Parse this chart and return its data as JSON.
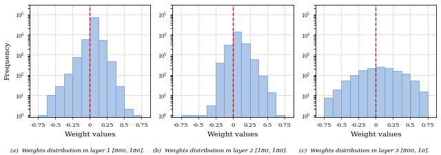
{
  "subplots": [
    {
      "caption": "(a)  Weights distribution in layer 1 [800, 180].",
      "bin_edges": [
        -0.75,
        -0.625,
        -0.5,
        -0.375,
        -0.25,
        -0.125,
        0.0,
        0.125,
        0.25,
        0.375,
        0.5,
        0.625,
        0.75
      ],
      "bin_heights": [
        1,
        10,
        28,
        110,
        750,
        6000,
        75000,
        5500,
        480,
        28,
        2,
        1
      ],
      "xlim": [
        -0.875,
        0.875
      ],
      "xticks": [
        -0.75,
        -0.5,
        -0.25,
        0.0,
        0.25,
        0.5,
        0.75
      ],
      "xtick_labels": [
        "-0.75",
        "-0.5",
        "-0.25",
        "0",
        "0.25",
        "0.5",
        "0.75"
      ],
      "vline": 0.0
    },
    {
      "caption": "(b)  Weights distribution in layer 2 [180, 180].",
      "bin_edges": [
        -0.75,
        -0.625,
        -0.5,
        -0.375,
        -0.25,
        -0.125,
        0.0,
        0.125,
        0.25,
        0.375,
        0.5,
        0.625,
        0.75
      ],
      "bin_heights": [
        1,
        1,
        1,
        3,
        400,
        3000,
        14000,
        3500,
        600,
        90,
        13,
        1
      ],
      "xlim": [
        -0.875,
        0.875
      ],
      "xticks": [
        -0.75,
        -0.5,
        -0.25,
        0.0,
        0.25,
        0.5,
        0.75
      ],
      "xtick_labels": [
        "-0.75",
        "-0.5",
        "-0.25",
        "0",
        "0.25",
        "0.5",
        "0.75"
      ],
      "vline": 0.0
    },
    {
      "caption": "(c)  Weights distribution in layer 3 [800, 10].",
      "bin_edges": [
        -0.75,
        -0.625,
        -0.5,
        -0.375,
        -0.25,
        -0.125,
        0.0,
        0.125,
        0.25,
        0.375,
        0.5,
        0.625,
        0.75
      ],
      "bin_heights": [
        7,
        18,
        50,
        95,
        165,
        215,
        245,
        205,
        155,
        115,
        52,
        15
      ],
      "xlim": [
        -0.875,
        0.875
      ],
      "xticks": [
        -0.75,
        -0.5,
        -0.25,
        0.0,
        0.25,
        0.5,
        0.75
      ],
      "xtick_labels": [
        "-0.75",
        "-0.5",
        "-0.25",
        "0",
        "0.25",
        "0.5",
        "0.75"
      ],
      "vline": 0.0
    }
  ],
  "bar_facecolor": "#aec7e8",
  "bar_edgecolor": "#6699cc",
  "bar_alpha": 0.85,
  "vline_color": "#aa2222",
  "ylabel": "Frequency",
  "xlabel": "Weight values",
  "ylim_min": 0.8,
  "ylim_max": 300000,
  "yticks": [
    1,
    10,
    100,
    1000,
    10000,
    100000
  ],
  "ytick_labels": [
    "$10^0$",
    "$10^1$",
    "$10^2$",
    "$10^3$",
    "$10^4$",
    "$10^5$"
  ],
  "grid_color": "#cccccc",
  "grid_style": "--",
  "figsize": [
    6.4,
    2.25
  ],
  "dpi": 100
}
